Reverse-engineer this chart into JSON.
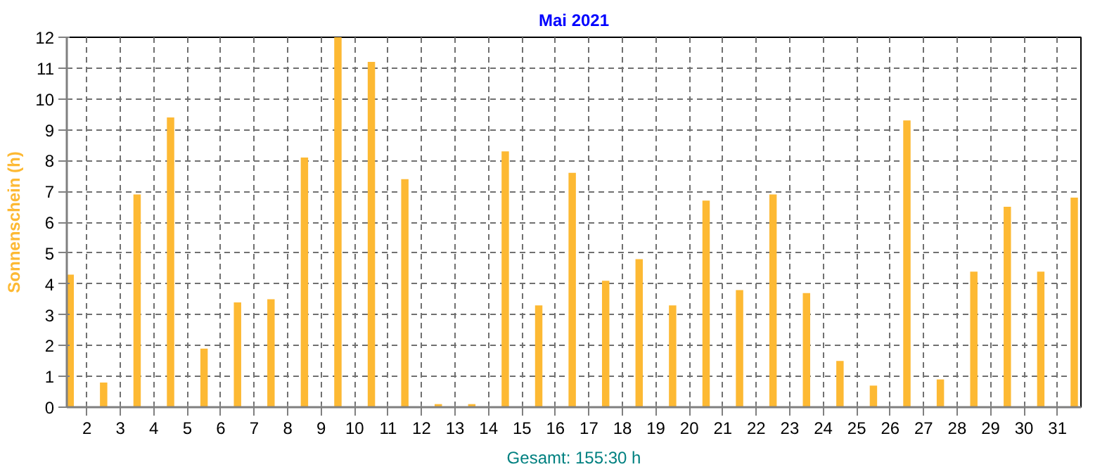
{
  "chart_data": {
    "type": "bar",
    "title": "Mai 2021",
    "ylabel": "Sonnenschein (h)",
    "annotations": [
      "Gesamt: 155:30 h"
    ],
    "x": [
      1.5,
      2.5,
      3.5,
      4.5,
      5.5,
      6.5,
      7.5,
      8.5,
      9.5,
      10.5,
      11.5,
      12.5,
      13.5,
      14.5,
      15.5,
      16.5,
      17.5,
      18.5,
      19.5,
      20.5,
      21.5,
      22.5,
      23.5,
      24.5,
      25.5,
      26.5,
      27.5,
      28.5,
      29.5,
      30.5,
      31.5
    ],
    "values": [
      4.3,
      0.8,
      6.9,
      9.4,
      1.9,
      3.4,
      3.5,
      8.1,
      12.0,
      11.2,
      7.4,
      0.1,
      0.1,
      8.3,
      3.3,
      7.6,
      4.1,
      4.8,
      3.3,
      6.7,
      3.8,
      6.9,
      3.7,
      1.5,
      0.7,
      9.3,
      0.9,
      4.4,
      6.5,
      4.4,
      6.8
    ],
    "color": "#fdb933",
    "xlim": [
      1.4,
      31.7
    ],
    "xticks": [
      2,
      3,
      4,
      5,
      6,
      7,
      8,
      9,
      10,
      11,
      12,
      13,
      14,
      15,
      16,
      17,
      18,
      19,
      20,
      21,
      22,
      23,
      24,
      25,
      26,
      27,
      28,
      29,
      30,
      31
    ],
    "ylim": [
      0,
      12
    ],
    "yticks": [
      0,
      1,
      2,
      3,
      4,
      5,
      6,
      7,
      8,
      9,
      10,
      11,
      12
    ],
    "grid": true
  }
}
